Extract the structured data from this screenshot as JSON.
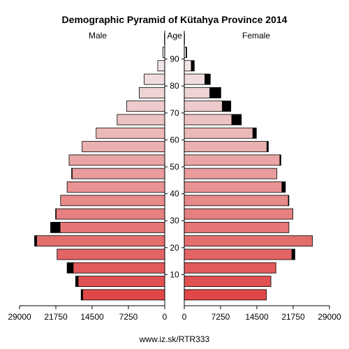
{
  "chart_data": {
    "type": "bar",
    "subtype": "population-pyramid",
    "title": "Demographic Pyramid of Kütahya Province 2014",
    "left_label": "Male",
    "center_label": "Age",
    "right_label": "Female",
    "source": "www.iz.sk/RTR333",
    "xlim": [
      0,
      29000
    ],
    "x_ticks_left": [
      "29000",
      "21750",
      "14500",
      "7250",
      "0"
    ],
    "x_ticks_right": [
      "0",
      "7250",
      "14500",
      "21750",
      "29000"
    ],
    "age_ticks": [
      "10",
      "20",
      "30",
      "40",
      "50",
      "60",
      "70",
      "80",
      "90"
    ],
    "age_groups": [
      "0-4",
      "5-9",
      "10-14",
      "15-19",
      "20-24",
      "25-29",
      "30-34",
      "35-39",
      "40-44",
      "45-49",
      "50-54",
      "55-59",
      "60-64",
      "65-69",
      "70-74",
      "75-79",
      "80-84",
      "85-89",
      "90-94",
      "95+"
    ],
    "excess_color": "#000000",
    "male_total": [
      16700,
      17800,
      19500,
      21500,
      26000,
      22800,
      21800,
      20800,
      19500,
      18600,
      19100,
      16500,
      13700,
      9500,
      7600,
      5100,
      4100,
      1400,
      380,
      60
    ],
    "female_total": [
      16400,
      17300,
      18300,
      22100,
      25600,
      20900,
      21700,
      20900,
      20200,
      18500,
      19300,
      16800,
      14400,
      11400,
      9300,
      7300,
      5200,
      2000,
      500,
      60
    ],
    "colors": [
      "#e04848",
      "#e15151",
      "#e25a5a",
      "#e36464",
      "#e46d6d",
      "#e57777",
      "#e68080",
      "#e78a8a",
      "#e89393",
      "#e99d9d",
      "#eaa6a6",
      "#ebb0b0",
      "#ecb9b9",
      "#edc2c2",
      "#eecbcb",
      "#efd4d4",
      "#f0dcdc",
      "#f1e4e4",
      "#f2ecec",
      "#f3f2f2"
    ]
  }
}
